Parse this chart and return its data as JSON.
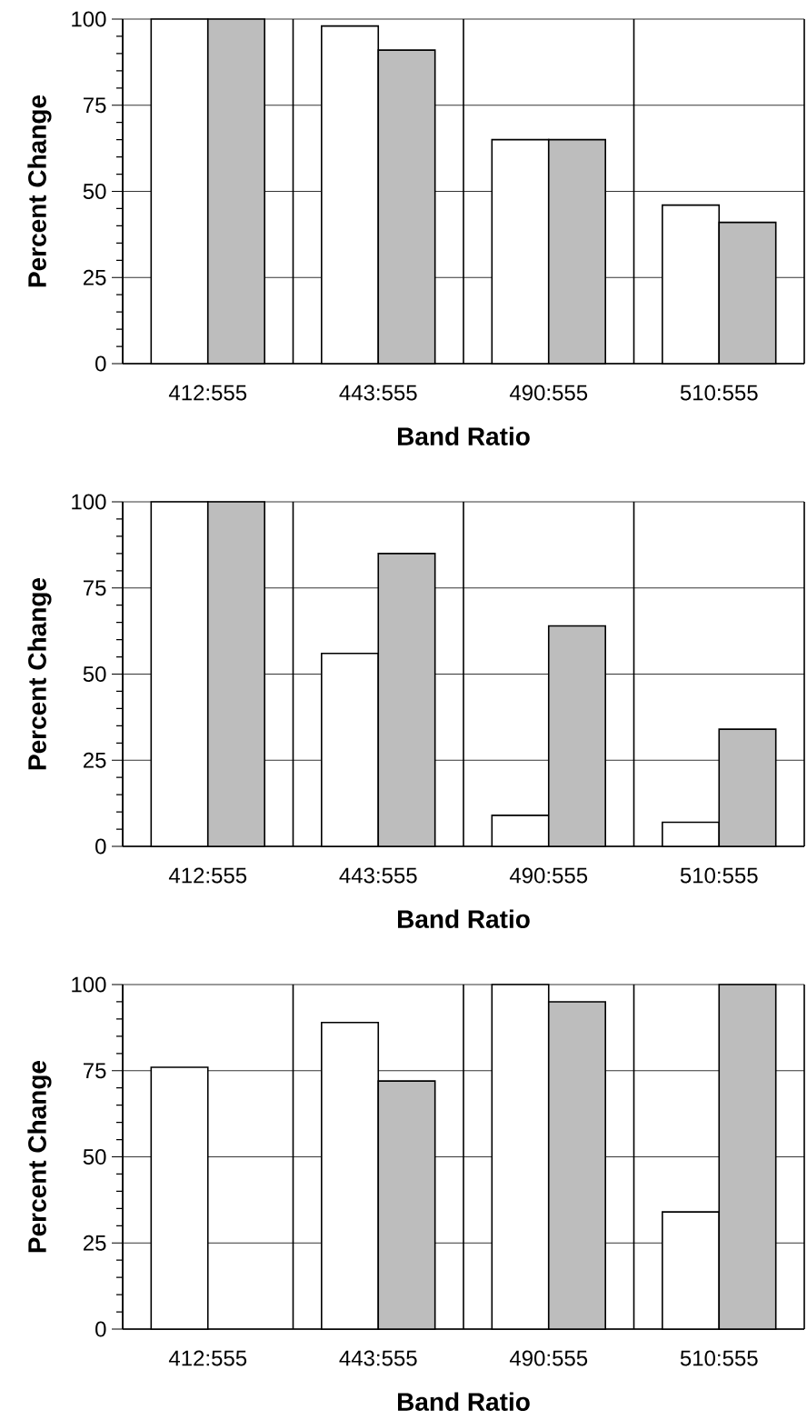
{
  "chart_data": [
    {
      "type": "bar",
      "categories": [
        "412:555",
        "443:555",
        "490:555",
        "510:555"
      ],
      "xlabel": "Band Ratio",
      "ylabel": "Percent Change",
      "ylim": [
        0,
        100
      ],
      "yticks": [
        0,
        25,
        50,
        75,
        100
      ],
      "grid": true,
      "series": [
        {
          "color": "#ffffff",
          "values": [
            100,
            98,
            65,
            46
          ]
        },
        {
          "color": "#bdbdbd",
          "values": [
            100,
            91,
            65,
            41
          ]
        }
      ]
    },
    {
      "type": "bar",
      "categories": [
        "412:555",
        "443:555",
        "490:555",
        "510:555"
      ],
      "xlabel": "Band Ratio",
      "ylabel": "Percent Change",
      "ylim": [
        0,
        100
      ],
      "yticks": [
        0,
        25,
        50,
        75,
        100
      ],
      "grid": true,
      "series": [
        {
          "color": "#ffffff",
          "values": [
            100,
            56,
            9,
            7
          ]
        },
        {
          "color": "#bdbdbd",
          "values": [
            100,
            85,
            64,
            34
          ]
        }
      ]
    },
    {
      "type": "bar",
      "categories": [
        "412:555",
        "443:555",
        "490:555",
        "510:555"
      ],
      "xlabel": "Band Ratio",
      "ylabel": "Percent Change",
      "ylim": [
        0,
        100
      ],
      "yticks": [
        0,
        25,
        50,
        75,
        100
      ],
      "grid": true,
      "series": [
        {
          "color": "#ffffff",
          "values": [
            76,
            89,
            100,
            34
          ]
        },
        {
          "color": "#bdbdbd",
          "values": [
            null,
            72,
            95,
            100
          ]
        }
      ]
    }
  ]
}
